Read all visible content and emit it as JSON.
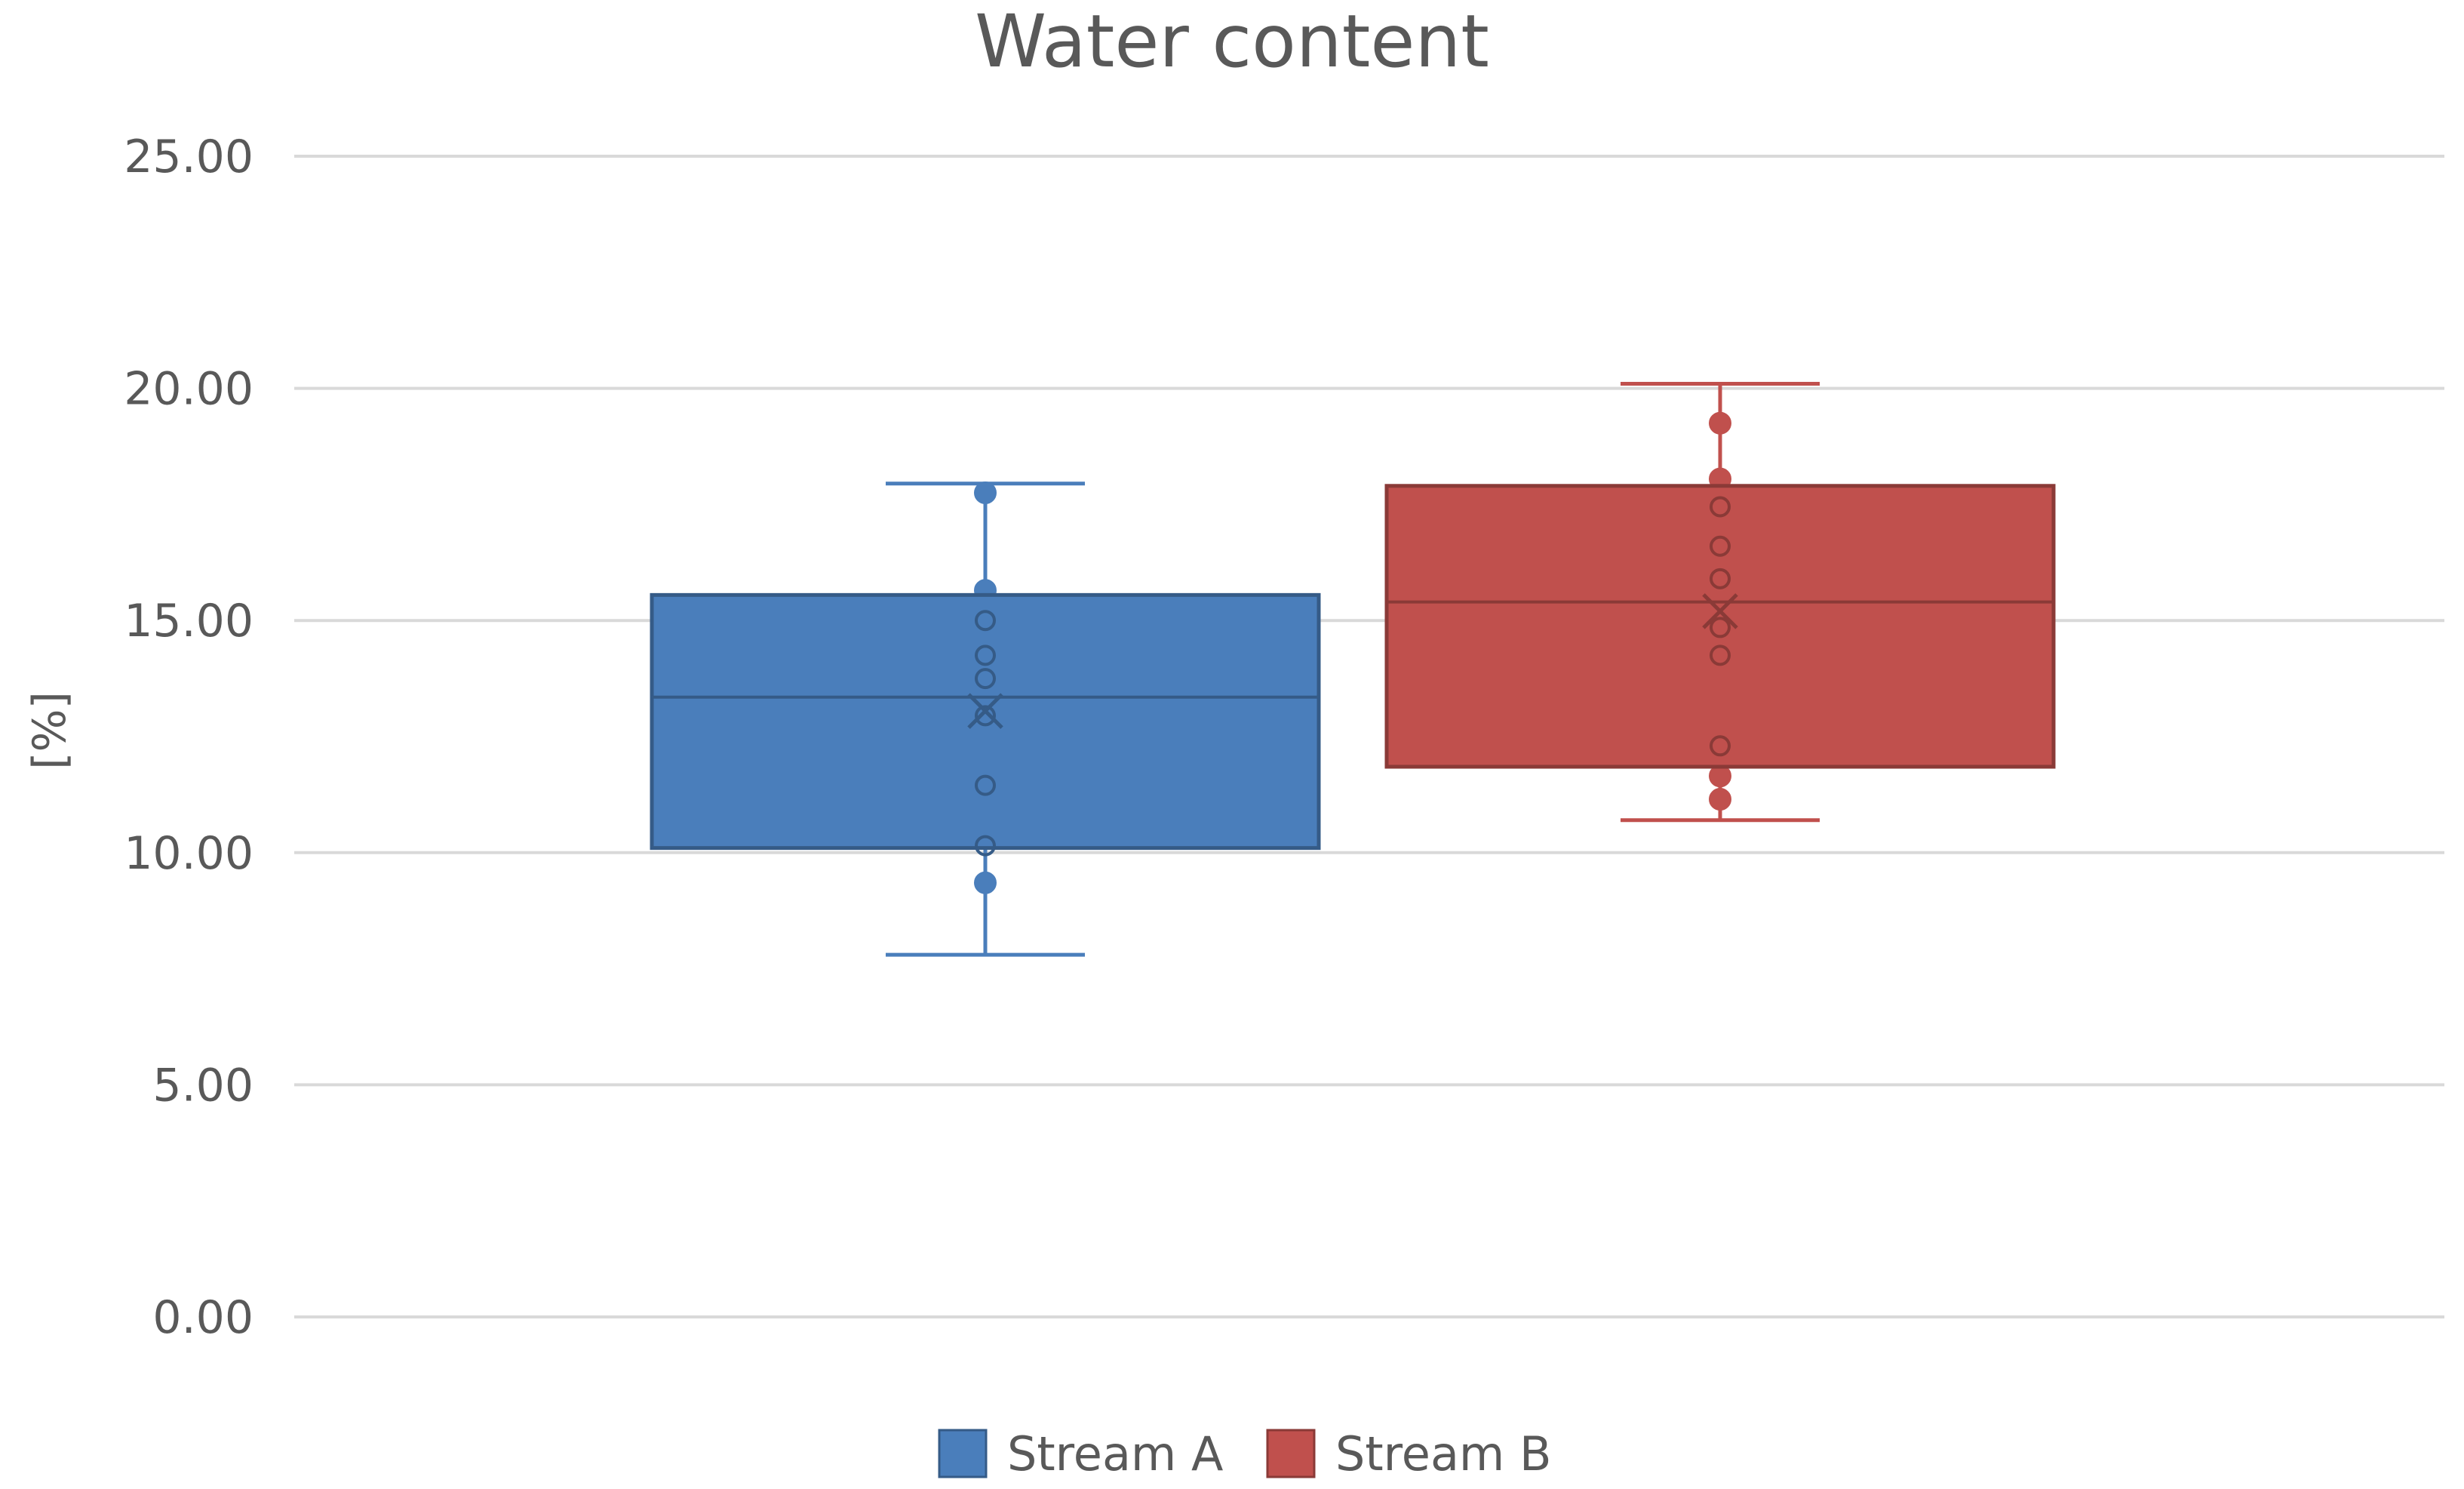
{
  "chart_data": {
    "type": "box",
    "title": "Water content",
    "xlabel": "",
    "ylabel": "[%]",
    "ylim": [
      0,
      25
    ],
    "yticks": [
      "0.00",
      "5.00",
      "10.00",
      "15.00",
      "20.00",
      "25.00"
    ],
    "grid": true,
    "legend_position": "bottom",
    "series": [
      {
        "name": "Stream A",
        "color": "#4A7EBB",
        "min": 7.8,
        "q1": 10.1,
        "median": 13.35,
        "q3": 15.55,
        "max": 17.95,
        "mean": 13.05,
        "points": [
          17.75,
          15.65,
          15.0,
          14.25,
          13.75,
          12.95,
          11.45,
          10.15,
          9.35
        ]
      },
      {
        "name": "Stream B",
        "color": "#C0504D",
        "min": 10.7,
        "q1": 11.85,
        "median": 15.4,
        "q3": 17.9,
        "max": 20.1,
        "mean": 15.2,
        "points": [
          19.25,
          18.05,
          17.45,
          16.6,
          15.9,
          14.85,
          14.25,
          12.3,
          11.65,
          11.15
        ]
      }
    ]
  }
}
